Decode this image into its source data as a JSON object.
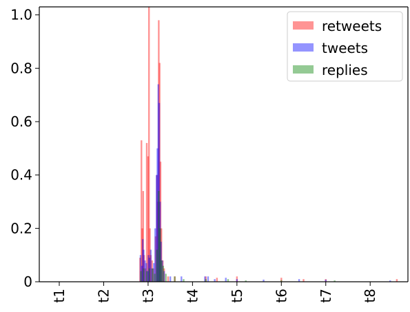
{
  "chart_data": {
    "type": "histogram",
    "title": "",
    "xlabel": "",
    "ylabel": "",
    "ylim": [
      0,
      1.03
    ],
    "xlim": [
      0.55,
      8.85
    ],
    "grid": false,
    "legend_position": "top-right",
    "x_ticks": [
      {
        "value": 1,
        "label": "t1"
      },
      {
        "value": 2,
        "label": "t2"
      },
      {
        "value": 3,
        "label": "t3"
      },
      {
        "value": 4,
        "label": "t4"
      },
      {
        "value": 5,
        "label": "t5"
      },
      {
        "value": 6,
        "label": "t6"
      },
      {
        "value": 7,
        "label": "t7"
      },
      {
        "value": 8,
        "label": "t8"
      }
    ],
    "y_ticks": [
      {
        "value": 0,
        "label": "0"
      },
      {
        "value": 0.2,
        "label": "0.2"
      },
      {
        "value": 0.4,
        "label": "0.4"
      },
      {
        "value": 0.6,
        "label": "0.6"
      },
      {
        "value": 0.8,
        "label": "0.8"
      },
      {
        "value": 1.0,
        "label": "1.0"
      }
    ],
    "series": [
      {
        "name": "retweets",
        "color": "#ff0000",
        "points": [
          [
            2.82,
            0.09
          ],
          [
            2.85,
            0.53
          ],
          [
            2.87,
            0.2
          ],
          [
            2.89,
            0.34
          ],
          [
            2.91,
            0.1
          ],
          [
            2.94,
            0.05
          ],
          [
            2.97,
            0.52
          ],
          [
            3.0,
            0.47
          ],
          [
            3.02,
            1.03
          ],
          [
            3.04,
            0.2
          ],
          [
            3.06,
            0.1
          ],
          [
            3.09,
            0.08
          ],
          [
            3.12,
            0.05
          ],
          [
            3.17,
            0.17
          ],
          [
            3.2,
            0.4
          ],
          [
            3.22,
            0.3
          ],
          [
            3.24,
            0.98
          ],
          [
            3.26,
            0.82
          ],
          [
            3.28,
            0.45
          ],
          [
            3.3,
            0.2
          ],
          [
            3.33,
            0.08
          ],
          [
            3.36,
            0.05
          ],
          [
            3.45,
            0.02
          ],
          [
            3.6,
            0.02
          ],
          [
            4.3,
            0.02
          ],
          [
            4.55,
            0.015
          ],
          [
            5.0,
            0.02
          ],
          [
            6.0,
            0.015
          ],
          [
            6.5,
            0.01
          ],
          [
            7.0,
            0.01
          ],
          [
            8.6,
            0.01
          ]
        ]
      },
      {
        "name": "tweets",
        "color": "#0000ff",
        "points": [
          [
            2.83,
            0.1
          ],
          [
            2.86,
            0.06
          ],
          [
            2.88,
            0.16
          ],
          [
            2.9,
            0.12
          ],
          [
            2.93,
            0.08
          ],
          [
            2.96,
            0.07
          ],
          [
            2.99,
            0.04
          ],
          [
            3.01,
            0.1
          ],
          [
            3.03,
            0.09
          ],
          [
            3.06,
            0.12
          ],
          [
            3.09,
            0.05
          ],
          [
            3.13,
            0.07
          ],
          [
            3.16,
            0.2
          ],
          [
            3.19,
            0.4
          ],
          [
            3.21,
            0.5
          ],
          [
            3.23,
            0.74
          ],
          [
            3.25,
            0.67
          ],
          [
            3.27,
            0.3
          ],
          [
            3.29,
            0.15
          ],
          [
            3.32,
            0.08
          ],
          [
            3.36,
            0.04
          ],
          [
            3.5,
            0.02
          ],
          [
            3.75,
            0.02
          ],
          [
            4.28,
            0.02
          ],
          [
            4.35,
            0.02
          ],
          [
            4.5,
            0.01
          ],
          [
            4.75,
            0.015
          ],
          [
            5.0,
            0.01
          ],
          [
            5.6,
            0.008
          ],
          [
            6.4,
            0.01
          ],
          [
            7.0,
            0.008
          ],
          [
            8.45,
            0.005
          ]
        ]
      },
      {
        "name": "replies",
        "color": "#008000",
        "points": [
          [
            2.84,
            0.04
          ],
          [
            2.9,
            0.05
          ],
          [
            2.97,
            0.04
          ],
          [
            3.03,
            0.05
          ],
          [
            3.1,
            0.05
          ],
          [
            3.15,
            0.03
          ],
          [
            3.2,
            0.12
          ],
          [
            3.24,
            0.34
          ],
          [
            3.27,
            0.2
          ],
          [
            3.3,
            0.08
          ],
          [
            3.34,
            0.06
          ],
          [
            3.4,
            0.03
          ],
          [
            3.6,
            0.02
          ],
          [
            3.8,
            0.01
          ],
          [
            4.3,
            0.01
          ],
          [
            4.8,
            0.01
          ],
          [
            5.2,
            0.005
          ],
          [
            6.0,
            0.006
          ],
          [
            7.2,
            0.005
          ]
        ]
      }
    ]
  }
}
